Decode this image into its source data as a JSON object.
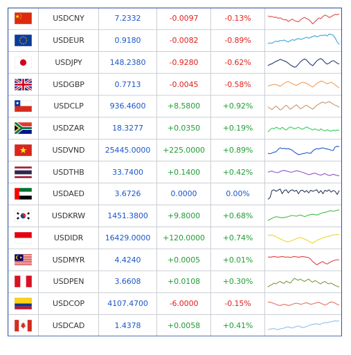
{
  "rows": [
    {
      "flag": "china-flag-icon",
      "symbol": "USDCNY",
      "price": "7.2332",
      "change": "-0.0097",
      "percent": "-0.13%",
      "direction": "down",
      "spark_color": "#e04848",
      "spark": [
        0.35,
        0.4,
        0.38,
        0.45,
        0.42,
        0.5,
        0.47,
        0.55,
        0.6,
        0.58,
        0.7,
        0.62,
        0.55,
        0.65,
        0.68,
        0.72,
        0.6,
        0.5,
        0.45,
        0.52,
        0.58,
        0.7,
        0.85,
        0.72,
        0.6,
        0.48,
        0.52,
        0.38,
        0.3,
        0.35,
        0.45,
        0.4,
        0.32,
        0.25,
        0.28,
        0.22
      ]
    },
    {
      "flag": "eu-flag-icon",
      "symbol": "USDEUR",
      "price": "0.9180",
      "change": "-0.0082",
      "percent": "-0.89%",
      "direction": "down",
      "spark_color": "#3aa0e0",
      "spark": [
        0.7,
        0.65,
        0.68,
        0.6,
        0.55,
        0.58,
        0.5,
        0.52,
        0.48,
        0.55,
        0.6,
        0.52,
        0.45,
        0.5,
        0.42,
        0.38,
        0.44,
        0.4,
        0.35,
        0.3,
        0.36,
        0.3,
        0.25,
        0.2,
        0.28,
        0.22,
        0.18,
        0.2,
        0.15,
        0.22,
        0.1,
        0.12,
        0.18,
        0.35,
        0.6,
        0.75
      ]
    },
    {
      "flag": "japan-flag-icon",
      "symbol": "USDJPY",
      "price": "148.2380",
      "change": "-0.9280",
      "percent": "-0.62%",
      "direction": "down",
      "spark_color": "#1f3a6b",
      "spark": [
        0.7,
        0.62,
        0.58,
        0.5,
        0.42,
        0.38,
        0.3,
        0.35,
        0.4,
        0.45,
        0.55,
        0.65,
        0.72,
        0.8,
        0.75,
        0.6,
        0.45,
        0.35,
        0.28,
        0.35,
        0.5,
        0.62,
        0.7,
        0.55,
        0.4,
        0.3,
        0.25,
        0.35,
        0.5,
        0.6,
        0.55,
        0.45,
        0.38,
        0.45,
        0.55,
        0.6
      ]
    },
    {
      "flag": "uk-flag-icon",
      "symbol": "USDGBP",
      "price": "0.7713",
      "change": "-0.0045",
      "percent": "-0.58%",
      "direction": "down",
      "spark_color": "#f29a55",
      "spark": [
        0.6,
        0.55,
        0.52,
        0.48,
        0.5,
        0.55,
        0.6,
        0.52,
        0.42,
        0.35,
        0.3,
        0.38,
        0.45,
        0.5,
        0.55,
        0.48,
        0.4,
        0.35,
        0.38,
        0.42,
        0.5,
        0.58,
        0.65,
        0.55,
        0.42,
        0.35,
        0.28,
        0.3,
        0.38,
        0.45,
        0.4,
        0.35,
        0.42,
        0.52,
        0.62,
        0.7
      ]
    },
    {
      "flag": "chile-flag-icon",
      "symbol": "USDCLP",
      "price": "936.4600",
      "change": "+8.5800",
      "percent": "+0.92%",
      "direction": "up",
      "spark_color": "#c8956a",
      "spark": [
        0.55,
        0.65,
        0.72,
        0.6,
        0.5,
        0.62,
        0.75,
        0.68,
        0.55,
        0.45,
        0.58,
        0.7,
        0.62,
        0.5,
        0.42,
        0.55,
        0.68,
        0.6,
        0.5,
        0.45,
        0.55,
        0.62,
        0.7,
        0.58,
        0.45,
        0.38,
        0.3,
        0.25,
        0.32,
        0.28,
        0.22,
        0.3,
        0.38,
        0.45,
        0.5,
        0.58
      ]
    },
    {
      "flag": "south-africa-flag-icon",
      "symbol": "USDZAR",
      "price": "18.3277",
      "change": "+0.0350",
      "percent": "+0.19%",
      "direction": "up",
      "spark_color": "#33cc55",
      "spark": [
        0.75,
        0.6,
        0.5,
        0.55,
        0.45,
        0.5,
        0.58,
        0.45,
        0.55,
        0.62,
        0.5,
        0.42,
        0.48,
        0.55,
        0.5,
        0.45,
        0.52,
        0.58,
        0.5,
        0.42,
        0.5,
        0.55,
        0.62,
        0.55,
        0.6,
        0.65,
        0.55,
        0.62,
        0.68,
        0.6,
        0.65,
        0.7,
        0.62,
        0.66,
        0.62,
        0.64
      ]
    },
    {
      "flag": "vietnam-flag-icon",
      "symbol": "USDVND",
      "price": "25445.0000",
      "change": "+225.0000",
      "percent": "+0.89%",
      "direction": "up",
      "spark_color": "#2457c9",
      "spark": [
        0.7,
        0.72,
        0.68,
        0.62,
        0.6,
        0.45,
        0.35,
        0.4,
        0.38,
        0.42,
        0.4,
        0.45,
        0.5,
        0.62,
        0.7,
        0.78,
        0.75,
        0.72,
        0.7,
        0.65,
        0.68,
        0.7,
        0.55,
        0.45,
        0.4,
        0.42,
        0.38,
        0.35,
        0.4,
        0.42,
        0.45,
        0.5,
        0.52,
        0.3,
        0.25,
        0.28
      ]
    },
    {
      "flag": "thailand-flag-icon",
      "symbol": "USDTHB",
      "price": "33.7400",
      "change": "+0.1400",
      "percent": "+0.42%",
      "direction": "up",
      "spark_color": "#8a55c8",
      "spark": [
        0.5,
        0.45,
        0.42,
        0.48,
        0.5,
        0.52,
        0.45,
        0.4,
        0.38,
        0.42,
        0.45,
        0.5,
        0.48,
        0.44,
        0.4,
        0.42,
        0.46,
        0.5,
        0.55,
        0.6,
        0.65,
        0.62,
        0.58,
        0.55,
        0.6,
        0.65,
        0.68,
        0.62,
        0.58,
        0.65,
        0.7,
        0.68,
        0.62,
        0.66,
        0.7,
        0.72
      ]
    },
    {
      "flag": "uae-flag-icon",
      "symbol": "USDAED",
      "price": "3.6726",
      "change": "0.0000",
      "percent": "0.00%",
      "direction": "flat",
      "spark_color": "#2a3a5a",
      "spark": [
        0.85,
        0.75,
        0.3,
        0.25,
        0.35,
        0.28,
        0.2,
        0.5,
        0.3,
        0.25,
        0.45,
        0.3,
        0.25,
        0.35,
        0.28,
        0.5,
        0.3,
        0.28,
        0.4,
        0.3,
        0.45,
        0.28,
        0.35,
        0.3,
        0.25,
        0.45,
        0.3,
        0.5,
        0.28,
        0.35,
        0.25,
        0.4,
        0.3,
        0.35,
        0.55,
        0.3
      ]
    },
    {
      "flag": "south-korea-flag-icon",
      "symbol": "USDKRW",
      "price": "1451.3800",
      "change": "+9.8000",
      "percent": "+0.68%",
      "direction": "up",
      "spark_color": "#44bb44",
      "spark": [
        0.8,
        0.72,
        0.65,
        0.6,
        0.55,
        0.58,
        0.6,
        0.62,
        0.6,
        0.58,
        0.55,
        0.5,
        0.48,
        0.5,
        0.52,
        0.48,
        0.45,
        0.5,
        0.55,
        0.5,
        0.45,
        0.42,
        0.4,
        0.42,
        0.45,
        0.4,
        0.35,
        0.3,
        0.28,
        0.25,
        0.2,
        0.18,
        0.22,
        0.18,
        0.15,
        0.12
      ]
    },
    {
      "flag": "indonesia-flag-icon",
      "symbol": "USDIDR",
      "price": "16429.0000",
      "change": "+120.0000",
      "percent": "+0.74%",
      "direction": "up",
      "spark_color": "#e8d630",
      "spark": [
        0.3,
        0.35,
        0.32,
        0.38,
        0.42,
        0.5,
        0.55,
        0.62,
        0.68,
        0.72,
        0.75,
        0.7,
        0.65,
        0.6,
        0.55,
        0.5,
        0.48,
        0.52,
        0.58,
        0.62,
        0.7,
        0.78,
        0.82,
        0.75,
        0.65,
        0.6,
        0.55,
        0.5,
        0.45,
        0.42,
        0.38,
        0.35,
        0.32,
        0.3,
        0.28,
        0.3
      ]
    },
    {
      "flag": "malaysia-flag-icon",
      "symbol": "USDMYR",
      "price": "4.4240",
      "change": "+0.0005",
      "percent": "+0.01%",
      "direction": "up",
      "spark_color": "#e04040",
      "spark": [
        0.3,
        0.32,
        0.3,
        0.28,
        0.3,
        0.32,
        0.3,
        0.28,
        0.3,
        0.32,
        0.3,
        0.35,
        0.3,
        0.28,
        0.3,
        0.32,
        0.3,
        0.28,
        0.3,
        0.32,
        0.35,
        0.45,
        0.6,
        0.7,
        0.8,
        0.72,
        0.65,
        0.6,
        0.7,
        0.75,
        0.68,
        0.6,
        0.55,
        0.5,
        0.48,
        0.5
      ]
    },
    {
      "flag": "peru-flag-icon",
      "symbol": "USDPEN",
      "price": "3.6608",
      "change": "+0.0108",
      "percent": "+0.30%",
      "direction": "up",
      "spark_color": "#7a9a40",
      "spark": [
        0.85,
        0.75,
        0.7,
        0.6,
        0.65,
        0.55,
        0.5,
        0.58,
        0.62,
        0.48,
        0.55,
        0.6,
        0.45,
        0.3,
        0.38,
        0.42,
        0.35,
        0.45,
        0.5,
        0.42,
        0.35,
        0.48,
        0.55,
        0.45,
        0.5,
        0.6,
        0.65,
        0.55,
        0.5,
        0.6,
        0.65,
        0.6,
        0.68,
        0.75,
        0.8,
        0.85
      ]
    },
    {
      "flag": "colombia-flag-icon",
      "symbol": "USDCOP",
      "price": "4107.4700",
      "change": "-6.0000",
      "percent": "-0.15%",
      "direction": "down",
      "spark_color": "#e07060",
      "spark": [
        0.4,
        0.42,
        0.45,
        0.5,
        0.55,
        0.6,
        0.62,
        0.58,
        0.55,
        0.58,
        0.62,
        0.6,
        0.55,
        0.5,
        0.48,
        0.5,
        0.55,
        0.52,
        0.48,
        0.45,
        0.5,
        0.55,
        0.52,
        0.48,
        0.45,
        0.42,
        0.48,
        0.55,
        0.6,
        0.55,
        0.45,
        0.4,
        0.42,
        0.48,
        0.55,
        0.6
      ]
    },
    {
      "flag": "canada-flag-icon",
      "symbol": "USDCAD",
      "price": "1.4378",
      "change": "+0.0058",
      "percent": "+0.41%",
      "direction": "up",
      "spark_color": "#8fc0e8",
      "spark": [
        0.75,
        0.72,
        0.7,
        0.68,
        0.72,
        0.75,
        0.7,
        0.68,
        0.65,
        0.6,
        0.58,
        0.62,
        0.65,
        0.6,
        0.55,
        0.52,
        0.58,
        0.62,
        0.6,
        0.55,
        0.5,
        0.45,
        0.42,
        0.4,
        0.38,
        0.42,
        0.4,
        0.35,
        0.3,
        0.32,
        0.28,
        0.25,
        0.22,
        0.2,
        0.22,
        0.18
      ]
    }
  ]
}
